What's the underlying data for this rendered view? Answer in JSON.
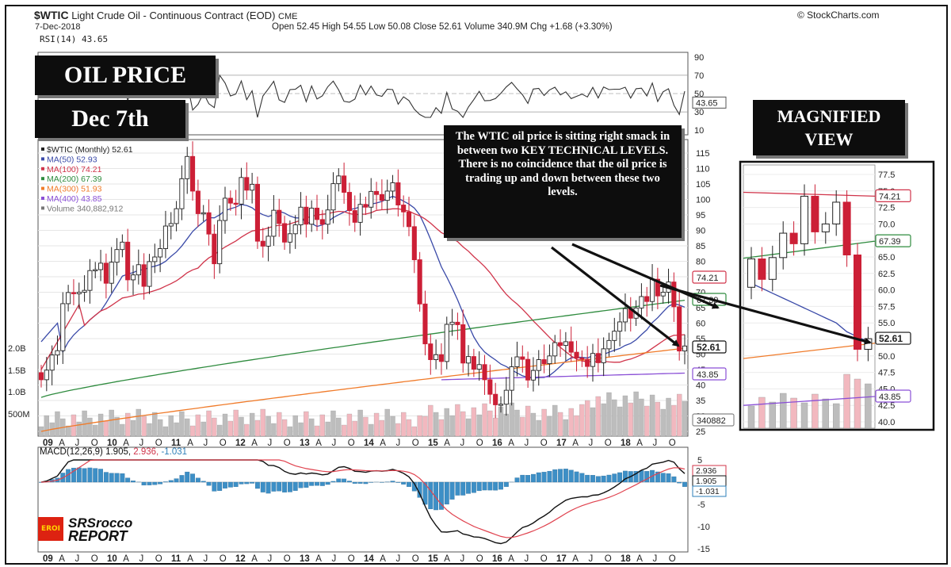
{
  "header": {
    "symbol": "$WTIC",
    "name": "Light Crude Oil - Continuous Contract (EOD)",
    "exchange": "CME",
    "date": "7-Dec-2018",
    "ohlc": "Open 52.45  High 54.55  Low 50.08  Close 52.61  Volume 340.9M  Chg +1.68 (+3.30%)",
    "source": "© StockCharts.com"
  },
  "badges": {
    "title": "OIL PRICE",
    "date": "Dec 7th",
    "magnified": "MAGNIFIED\nVIEW"
  },
  "callout": "The WTIC oil price is sitting right smack in between two KEY TECHNICAL LEVELS. There is no coincidence that the oil price is trading up and down between these two levels.",
  "legend": [
    {
      "label": "$WTIC (Monthly) 52.61",
      "color": "#222222"
    },
    {
      "label": "MA(50) 52.93",
      "color": "#3a4aa8"
    },
    {
      "label": "MA(100) 74.21",
      "color": "#d0344a"
    },
    {
      "label": "MA(200) 67.39",
      "color": "#2e8b3e"
    },
    {
      "label": "MA(300) 51.93",
      "color": "#f07b2a"
    },
    {
      "label": "MA(400) 43.85",
      "color": "#8a4fd6"
    },
    {
      "label": "Volume 340,882,912",
      "color": "#777777"
    }
  ],
  "rsi": {
    "label": "RSI(14) 43.65",
    "value": "43.65",
    "ticks": [
      "90",
      "70",
      "50",
      "30",
      "10"
    ]
  },
  "macd": {
    "label": "MACD(12,26,9) 1.905,",
    "signal": "2.936,",
    "hist": "-1.031",
    "ticks": [
      "5",
      "0",
      "-5",
      "-10",
      "-15"
    ],
    "tags": [
      "2.936",
      "1.905",
      "-1.031"
    ]
  },
  "price_ticks": [
    "115",
    "110",
    "105",
    "100",
    "95",
    "90",
    "85",
    "80",
    "75",
    "70",
    "65",
    "60",
    "55",
    "50",
    "45",
    "40",
    "35",
    "30",
    "25"
  ],
  "vol_ticks": [
    "2.0B",
    "1.5B",
    "1.0B",
    "500M"
  ],
  "right_tags": [
    "74.21",
    "67.39",
    "52.61",
    "43.85",
    "340882"
  ],
  "x_labels": [
    "09",
    "A",
    "J",
    "O",
    "10",
    "A",
    "J",
    "O",
    "11",
    "A",
    "J",
    "O",
    "12",
    "A",
    "J",
    "O",
    "13",
    "A",
    "J",
    "O",
    "14",
    "A",
    "J",
    "O",
    "15",
    "A",
    "J",
    "O",
    "16",
    "A",
    "J",
    "O",
    "17",
    "A",
    "J",
    "O",
    "18",
    "A",
    "J",
    "O"
  ],
  "mag": {
    "ticks": [
      "77.5",
      "75.0",
      "72.5",
      "70.0",
      "67.5",
      "65.0",
      "62.5",
      "60.0",
      "57.5",
      "55.0",
      "52.5",
      "50.0",
      "47.5",
      "45.0",
      "42.5",
      "40.0"
    ],
    "tags": [
      "74.21",
      "67.39",
      "52.61",
      "43.85"
    ]
  },
  "logo": {
    "mark": "EROI",
    "line1": "SRSrocco",
    "line2": "REPORT"
  },
  "chart_data": {
    "type": "candlestick",
    "title": "$WTIC Light Crude Oil - Continuous Contract (EOD)",
    "period": "Monthly",
    "x_range": [
      "2009-01",
      "2018-12"
    ],
    "ylim": [
      25,
      118
    ],
    "monthly_close": [
      41.7,
      44.8,
      49.7,
      51.1,
      66.3,
      69.9,
      69.5,
      70,
      70.6,
      77,
      77.3,
      79.4,
      72.9,
      79.7,
      83.8,
      86.2,
      74,
      75.6,
      78.9,
      71.9,
      79.9,
      81.4,
      84.1,
      91.4,
      92.2,
      97,
      106.7,
      113.9,
      102.7,
      95.4,
      95.7,
      88.8,
      79.2,
      93.2,
      100.4,
      98.8,
      98.5,
      107.1,
      103,
      104.9,
      86.5,
      84.9,
      88.1,
      96.5,
      92.2,
      86.2,
      88.9,
      91.8,
      97.5,
      92,
      97.2,
      93.5,
      91.97,
      96.6,
      105.1,
      107.6,
      102.3,
      96.4,
      92.6,
      98.4,
      97.5,
      102.6,
      101.6,
      99.7,
      102.7,
      105.4,
      98.2,
      95.96,
      91.2,
      80.5,
      66.2,
      53.3,
      48.2,
      49.8,
      47.6,
      59.6,
      60.3,
      59.5,
      47.1,
      49.2,
      45.1,
      46.6,
      41.7,
      37.0,
      33.6,
      33.8,
      38.3,
      45.9,
      49.1,
      48.3,
      41.6,
      44.7,
      48.2,
      46.9,
      49.4,
      53.7,
      52.8,
      54.0,
      50.6,
      48.7,
      48.3,
      46.0,
      50.2,
      47.2,
      51.7,
      54.4,
      57.4,
      60.4,
      64.7,
      61.6,
      64.9,
      68.6,
      67.0,
      74.2,
      68.8,
      70.0,
      73.3,
      65.3,
      51.0,
      52.61
    ],
    "series": [
      {
        "name": "MA(50)",
        "last": 52.93
      },
      {
        "name": "MA(100)",
        "last": 74.21
      },
      {
        "name": "MA(200)",
        "last": 67.39
      },
      {
        "name": "MA(300)",
        "last": 51.93
      },
      {
        "name": "MA(400)",
        "last": 43.85
      }
    ],
    "volume_last": 340882912,
    "rsi_last": 43.65,
    "macd_last": {
      "macd": 1.905,
      "signal": 2.936,
      "histogram": -1.031
    }
  }
}
